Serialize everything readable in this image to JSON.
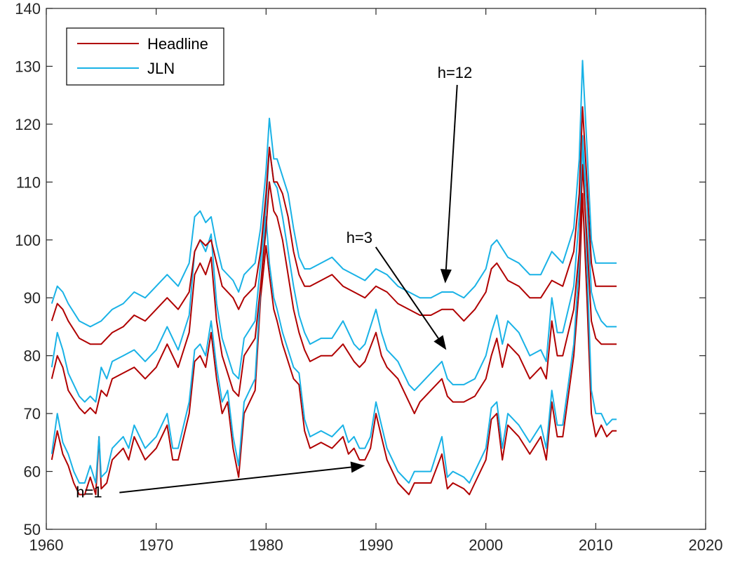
{
  "chart_data": {
    "type": "line",
    "title": "",
    "xlabel": "",
    "ylabel": "",
    "xlim": [
      1960,
      2020
    ],
    "ylim": [
      50,
      140
    ],
    "xticks": [
      1960,
      1970,
      1980,
      1990,
      2000,
      2010,
      2020
    ],
    "yticks": [
      50,
      60,
      70,
      80,
      90,
      100,
      110,
      120,
      130,
      140
    ],
    "grid": false,
    "legend": {
      "position": "top-left",
      "entries": [
        "Headline",
        "JLN"
      ]
    },
    "colors": {
      "Headline": "#b00000",
      "JLN": "#19b2e6"
    },
    "annotations": [
      {
        "text": "h=12",
        "text_x": 1995.6,
        "text_y": 128,
        "arrow_to": [
          1996.3,
          92.5
        ]
      },
      {
        "text": "h=3",
        "text_x": 1987.3,
        "text_y": 99.5,
        "arrow_to": [
          1996.4,
          81
        ]
      },
      {
        "text": "h=1",
        "text_x": 1962.7,
        "text_y": 55.5,
        "arrow_to": [
          1989.0,
          61
        ]
      }
    ],
    "series": [
      {
        "name": "Headline",
        "horizon": "h=1",
        "x": [
          1960.5,
          1961.0,
          1961.5,
          1962.0,
          1962.5,
          1963.0,
          1963.5,
          1964.0,
          1964.5,
          1964.8,
          1965.0,
          1965.5,
          1966.0,
          1967.0,
          1967.5,
          1968.0,
          1969.0,
          1970.0,
          1970.5,
          1971.0,
          1971.5,
          1972.0,
          1973.0,
          1973.5,
          1974.0,
          1974.5,
          1975.0,
          1975.5,
          1976.0,
          1976.5,
          1977.0,
          1977.5,
          1978.0,
          1979.0,
          1979.5,
          1980.0,
          1980.3,
          1980.7,
          1981.0,
          1981.5,
          1982.0,
          1982.5,
          1983.0,
          1983.5,
          1984.0,
          1985.0,
          1986.0,
          1987.0,
          1987.5,
          1988.0,
          1988.5,
          1989.0,
          1989.5,
          1990.0,
          1990.5,
          1991.0,
          1991.5,
          1992.0,
          1993.0,
          1993.5,
          1994.0,
          1995.0,
          1996.0,
          1996.5,
          1997.0,
          1998.0,
          1998.5,
          1999.0,
          2000.0,
          2000.5,
          2001.0,
          2001.5,
          2002.0,
          2003.0,
          2004.0,
          2005.0,
          2005.5,
          2006.0,
          2006.5,
          2007.0,
          2008.0,
          2008.5,
          2008.8,
          2009.2,
          2009.6,
          2010.0,
          2010.5,
          2011.0,
          2011.5,
          2011.9
        ],
        "y": [
          62,
          67,
          63,
          61,
          58,
          56,
          56,
          59,
          56,
          66,
          57,
          58,
          62,
          64,
          62,
          66,
          62,
          64,
          66,
          68,
          62,
          62,
          70,
          79,
          80,
          78,
          84,
          76,
          70,
          72,
          64,
          59,
          70,
          74,
          90,
          99,
          94,
          88,
          86,
          82,
          79,
          76,
          75,
          67,
          64,
          65,
          64,
          66,
          63,
          64,
          62,
          62,
          64,
          70,
          66,
          62,
          60,
          58,
          56,
          58,
          58,
          58,
          63,
          57,
          58,
          57,
          56,
          58,
          62,
          69,
          70,
          62,
          68,
          66,
          63,
          66,
          62,
          72,
          66,
          66,
          80,
          92,
          108,
          90,
          70,
          66,
          68,
          66,
          67,
          67
        ]
      },
      {
        "name": "JLN",
        "horizon": "h=1",
        "x": [
          1960.5,
          1961.0,
          1961.5,
          1962.0,
          1962.5,
          1963.0,
          1963.5,
          1964.0,
          1964.5,
          1964.8,
          1965.0,
          1965.5,
          1966.0,
          1967.0,
          1967.5,
          1968.0,
          1969.0,
          1970.0,
          1970.5,
          1971.0,
          1971.5,
          1972.0,
          1973.0,
          1973.5,
          1974.0,
          1974.5,
          1975.0,
          1975.5,
          1976.0,
          1976.5,
          1977.0,
          1977.5,
          1978.0,
          1979.0,
          1979.5,
          1980.0,
          1980.3,
          1980.7,
          1981.0,
          1981.5,
          1982.0,
          1982.5,
          1983.0,
          1983.5,
          1984.0,
          1985.0,
          1986.0,
          1987.0,
          1987.5,
          1988.0,
          1988.5,
          1989.0,
          1989.5,
          1990.0,
          1990.5,
          1991.0,
          1991.5,
          1992.0,
          1993.0,
          1993.5,
          1994.0,
          1995.0,
          1996.0,
          1996.5,
          1997.0,
          1998.0,
          1998.5,
          1999.0,
          2000.0,
          2000.5,
          2001.0,
          2001.5,
          2002.0,
          2003.0,
          2004.0,
          2005.0,
          2005.5,
          2006.0,
          2006.5,
          2007.0,
          2008.0,
          2008.5,
          2008.8,
          2009.2,
          2009.6,
          2010.0,
          2010.5,
          2011.0,
          2011.5,
          2011.9
        ],
        "y": [
          63,
          70,
          65,
          63,
          60,
          58,
          58,
          61,
          58,
          66,
          59,
          60,
          64,
          66,
          64,
          68,
          64,
          66,
          68,
          70,
          64,
          64,
          72,
          81,
          82,
          80,
          86,
          78,
          72,
          74,
          66,
          61,
          72,
          76,
          92,
          104,
          96,
          90,
          88,
          84,
          81,
          78,
          77,
          69,
          66,
          67,
          66,
          68,
          65,
          66,
          64,
          64,
          66,
          72,
          68,
          64,
          62,
          60,
          58,
          60,
          60,
          60,
          66,
          59,
          60,
          59,
          58,
          60,
          64,
          71,
          72,
          64,
          70,
          68,
          65,
          68,
          64,
          74,
          68,
          68,
          82,
          96,
          118,
          96,
          74,
          70,
          70,
          68,
          69,
          69
        ]
      },
      {
        "name": "Headline",
        "horizon": "h=3",
        "x": [
          1960.5,
          1961.0,
          1961.5,
          1962.0,
          1963.0,
          1963.5,
          1964.0,
          1964.5,
          1965.0,
          1965.5,
          1966.0,
          1967.0,
          1968.0,
          1969.0,
          1970.0,
          1970.5,
          1971.0,
          1972.0,
          1973.0,
          1973.5,
          1974.0,
          1974.5,
          1975.0,
          1975.5,
          1976.0,
          1977.0,
          1977.5,
          1978.0,
          1979.0,
          1979.5,
          1980.0,
          1980.3,
          1980.7,
          1981.0,
          1981.5,
          1982.0,
          1982.5,
          1983.0,
          1983.5,
          1984.0,
          1985.0,
          1986.0,
          1987.0,
          1988.0,
          1988.5,
          1989.0,
          1990.0,
          1990.5,
          1991.0,
          1992.0,
          1993.0,
          1993.5,
          1994.0,
          1995.0,
          1996.0,
          1996.5,
          1997.0,
          1998.0,
          1999.0,
          2000.0,
          2000.5,
          2001.0,
          2001.5,
          2002.0,
          2003.0,
          2004.0,
          2005.0,
          2005.5,
          2006.0,
          2006.5,
          2007.0,
          2008.0,
          2008.5,
          2008.8,
          2009.2,
          2009.6,
          2010.0,
          2010.5,
          2011.0,
          2011.5,
          2011.9
        ],
        "y": [
          76,
          80,
          78,
          74,
          71,
          70,
          71,
          70,
          74,
          73,
          76,
          77,
          78,
          76,
          78,
          80,
          82,
          78,
          84,
          94,
          96,
          94,
          97,
          86,
          80,
          74,
          73,
          80,
          83,
          92,
          102,
          110,
          105,
          104,
          100,
          94,
          88,
          84,
          81,
          79,
          80,
          80,
          82,
          79,
          78,
          79,
          84,
          80,
          78,
          76,
          72,
          70,
          72,
          74,
          76,
          73,
          72,
          72,
          73,
          76,
          80,
          83,
          78,
          82,
          80,
          76,
          78,
          76,
          86,
          80,
          80,
          88,
          98,
          113,
          100,
          86,
          83,
          82,
          82,
          82,
          82
        ]
      },
      {
        "name": "JLN",
        "horizon": "h=3",
        "x": [
          1960.5,
          1961.0,
          1961.5,
          1962.0,
          1963.0,
          1963.5,
          1964.0,
          1964.5,
          1965.0,
          1965.5,
          1966.0,
          1967.0,
          1968.0,
          1969.0,
          1970.0,
          1970.5,
          1971.0,
          1972.0,
          1973.0,
          1973.5,
          1974.0,
          1974.5,
          1975.0,
          1975.5,
          1976.0,
          1977.0,
          1977.5,
          1978.0,
          1979.0,
          1979.5,
          1980.0,
          1980.3,
          1980.7,
          1981.0,
          1981.5,
          1982.0,
          1982.5,
          1983.0,
          1983.5,
          1984.0,
          1985.0,
          1986.0,
          1987.0,
          1988.0,
          1988.5,
          1989.0,
          1990.0,
          1990.5,
          1991.0,
          1992.0,
          1993.0,
          1993.5,
          1994.0,
          1995.0,
          1996.0,
          1996.5,
          1997.0,
          1998.0,
          1999.0,
          2000.0,
          2000.5,
          2001.0,
          2001.5,
          2002.0,
          2003.0,
          2004.0,
          2005.0,
          2005.5,
          2006.0,
          2006.5,
          2007.0,
          2008.0,
          2008.5,
          2008.8,
          2009.2,
          2009.6,
          2010.0,
          2010.5,
          2011.0,
          2011.5,
          2011.9
        ],
        "y": [
          78,
          84,
          81,
          77,
          73,
          72,
          73,
          72,
          78,
          76,
          79,
          80,
          81,
          79,
          81,
          83,
          85,
          81,
          87,
          98,
          100,
          98,
          101,
          89,
          83,
          77,
          76,
          83,
          86,
          96,
          106,
          116,
          110,
          109,
          104,
          98,
          92,
          87,
          84,
          82,
          83,
          83,
          86,
          82,
          81,
          82,
          88,
          84,
          81,
          79,
          75,
          74,
          75,
          77,
          79,
          76,
          75,
          75,
          76,
          80,
          84,
          87,
          82,
          86,
          84,
          80,
          81,
          79,
          90,
          84,
          84,
          92,
          104,
          118,
          106,
          91,
          88,
          86,
          85,
          85,
          85
        ]
      },
      {
        "name": "Headline",
        "horizon": "h=12",
        "x": [
          1960.5,
          1961.0,
          1961.5,
          1962.0,
          1963.0,
          1964.0,
          1965.0,
          1966.0,
          1967.0,
          1968.0,
          1969.0,
          1970.0,
          1971.0,
          1972.0,
          1973.0,
          1973.5,
          1974.0,
          1974.5,
          1975.0,
          1975.5,
          1976.0,
          1977.0,
          1977.5,
          1978.0,
          1979.0,
          1979.5,
          1980.0,
          1980.3,
          1980.7,
          1981.0,
          1981.5,
          1982.0,
          1982.5,
          1983.0,
          1983.5,
          1984.0,
          1985.0,
          1986.0,
          1987.0,
          1988.0,
          1989.0,
          1990.0,
          1991.0,
          1992.0,
          1993.0,
          1994.0,
          1995.0,
          1996.0,
          1997.0,
          1998.0,
          1999.0,
          2000.0,
          2000.5,
          2001.0,
          2002.0,
          2003.0,
          2004.0,
          2005.0,
          2006.0,
          2007.0,
          2008.0,
          2008.5,
          2008.8,
          2009.2,
          2009.6,
          2010.0,
          2010.5,
          2011.0,
          2011.5,
          2011.9
        ],
        "y": [
          86,
          89,
          88,
          86,
          83,
          82,
          82,
          84,
          85,
          87,
          86,
          88,
          90,
          88,
          91,
          98,
          100,
          99,
          100,
          96,
          92,
          90,
          88,
          90,
          92,
          98,
          108,
          116,
          110,
          110,
          108,
          104,
          98,
          94,
          92,
          92,
          93,
          94,
          92,
          91,
          90,
          92,
          91,
          89,
          88,
          87,
          87,
          88,
          88,
          86,
          88,
          91,
          95,
          96,
          93,
          92,
          90,
          90,
          93,
          92,
          98,
          108,
          123,
          110,
          96,
          92,
          92,
          92,
          92,
          92
        ]
      },
      {
        "name": "JLN",
        "horizon": "h=12",
        "x": [
          1960.5,
          1961.0,
          1961.5,
          1962.0,
          1963.0,
          1964.0,
          1965.0,
          1966.0,
          1967.0,
          1968.0,
          1969.0,
          1970.0,
          1971.0,
          1972.0,
          1973.0,
          1973.5,
          1974.0,
          1974.5,
          1975.0,
          1975.5,
          1976.0,
          1977.0,
          1977.5,
          1978.0,
          1979.0,
          1979.5,
          1980.0,
          1980.3,
          1980.7,
          1981.0,
          1981.5,
          1982.0,
          1982.5,
          1983.0,
          1983.5,
          1984.0,
          1985.0,
          1986.0,
          1987.0,
          1988.0,
          1989.0,
          1990.0,
          1991.0,
          1992.0,
          1993.0,
          1994.0,
          1995.0,
          1996.0,
          1997.0,
          1998.0,
          1999.0,
          2000.0,
          2000.5,
          2001.0,
          2002.0,
          2003.0,
          2004.0,
          2005.0,
          2006.0,
          2007.0,
          2008.0,
          2008.5,
          2008.8,
          2009.2,
          2009.6,
          2010.0,
          2010.5,
          2011.0,
          2011.5,
          2011.9
        ],
        "y": [
          89,
          92,
          91,
          89,
          86,
          85,
          86,
          88,
          89,
          91,
          90,
          92,
          94,
          92,
          96,
          104,
          105,
          103,
          104,
          99,
          95,
          93,
          91,
          94,
          96,
          102,
          112,
          121,
          114,
          114,
          111,
          108,
          102,
          97,
          95,
          95,
          96,
          97,
          95,
          94,
          93,
          95,
          94,
          92,
          91,
          90,
          90,
          91,
          91,
          90,
          92,
          95,
          99,
          100,
          97,
          96,
          94,
          94,
          98,
          96,
          102,
          114,
          131,
          116,
          100,
          96,
          96,
          96,
          96,
          96
        ]
      }
    ]
  }
}
